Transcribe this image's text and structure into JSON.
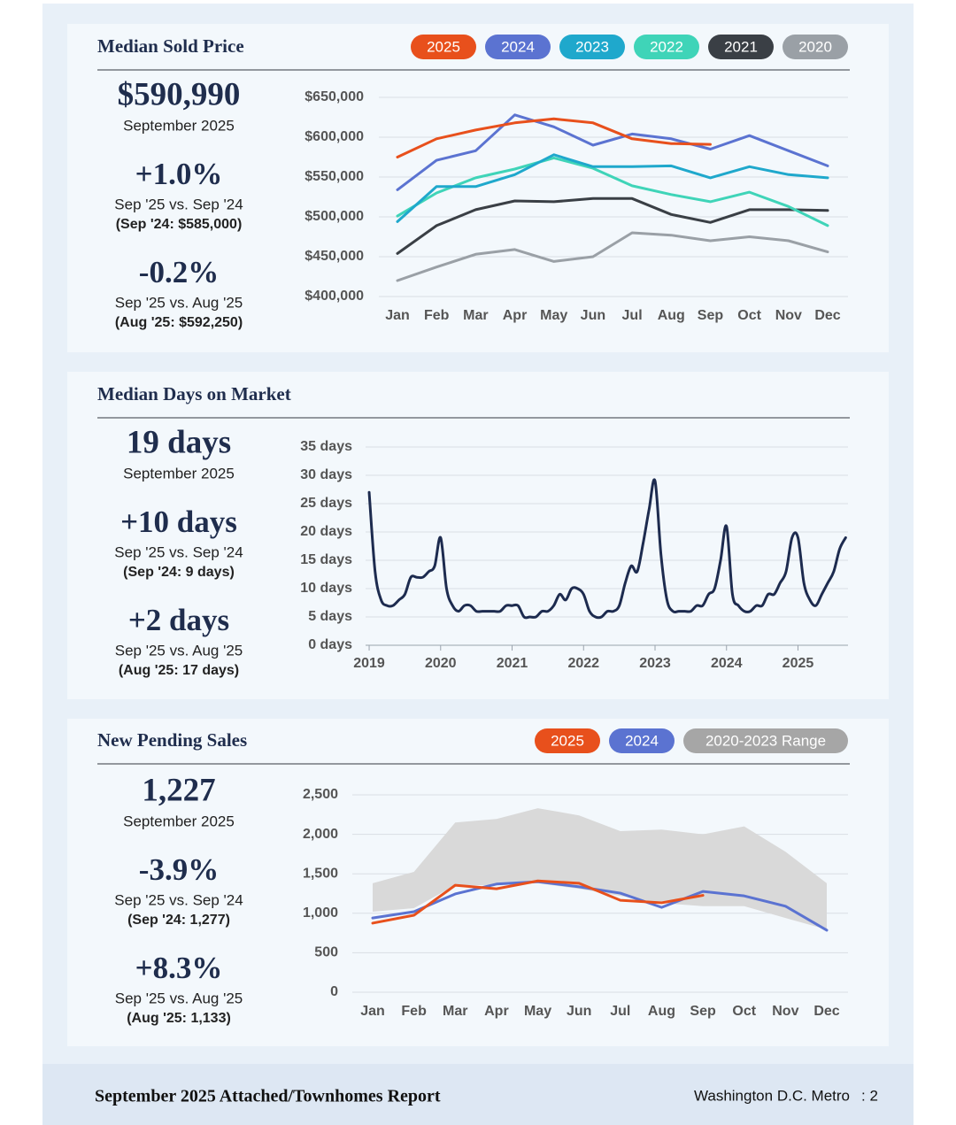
{
  "chart_data": [
    {
      "type": "line",
      "title": "Median Sold Price",
      "categories": [
        "Jan",
        "Feb",
        "Mar",
        "Apr",
        "May",
        "Jun",
        "Jul",
        "Aug",
        "Sep",
        "Oct",
        "Nov",
        "Dec"
      ],
      "series": [
        {
          "name": "2025",
          "color": "#e8501c",
          "values": [
            575000,
            598000,
            609000,
            618000,
            623000,
            618000,
            598000,
            592000,
            590990,
            null,
            null,
            null
          ]
        },
        {
          "name": "2024",
          "color": "#5b73d1",
          "values": [
            534000,
            571000,
            583000,
            628000,
            613000,
            590000,
            604000,
            598000,
            585000,
            602000,
            583000,
            564000
          ]
        },
        {
          "name": "2023",
          "color": "#1fa8cc",
          "values": [
            494000,
            538000,
            538000,
            553000,
            578000,
            563000,
            563000,
            564000,
            549000,
            563000,
            553000,
            549000
          ]
        },
        {
          "name": "2022",
          "color": "#3fd4b8",
          "values": [
            501000,
            530000,
            549000,
            560000,
            574000,
            561000,
            539000,
            528000,
            519000,
            531000,
            513000,
            489000
          ]
        },
        {
          "name": "2021",
          "color": "#3a3f45",
          "values": [
            454000,
            489000,
            509000,
            520000,
            519000,
            523000,
            523000,
            503000,
            493000,
            509000,
            509000,
            508000
          ]
        },
        {
          "name": "2020",
          "color": "#9aa0a6",
          "values": [
            420000,
            437000,
            453000,
            459000,
            444000,
            450000,
            480000,
            477000,
            470000,
            475000,
            470000,
            456000
          ]
        }
      ],
      "ylim": [
        400000,
        650000
      ],
      "yticks": [
        {
          "value": 400000,
          "label": "$400,000"
        },
        {
          "value": 450000,
          "label": "$450,000"
        },
        {
          "value": 500000,
          "label": "$500,000"
        },
        {
          "value": 550000,
          "label": "$550,000"
        },
        {
          "value": 600000,
          "label": "$600,000"
        },
        {
          "value": 650000,
          "label": "$650,000"
        }
      ],
      "grid": true,
      "legend": "top-right"
    },
    {
      "type": "line",
      "title": "Median Days on Market",
      "x": [
        2019,
        2019.083,
        2019.167,
        2019.25,
        2019.333,
        2019.417,
        2019.5,
        2019.583,
        2019.667,
        2019.75,
        2019.833,
        2019.917,
        2020,
        2020.083,
        2020.167,
        2020.25,
        2020.333,
        2020.417,
        2020.5,
        2020.583,
        2020.667,
        2020.75,
        2020.833,
        2020.917,
        2021,
        2021.083,
        2021.167,
        2021.25,
        2021.333,
        2021.417,
        2021.5,
        2021.583,
        2021.667,
        2021.75,
        2021.833,
        2021.917,
        2022,
        2022.083,
        2022.167,
        2022.25,
        2022.333,
        2022.417,
        2022.5,
        2022.583,
        2022.667,
        2022.75,
        2022.833,
        2022.917,
        2023,
        2023.083,
        2023.167,
        2023.25,
        2023.333,
        2023.417,
        2023.5,
        2023.583,
        2023.667,
        2023.75,
        2023.833,
        2023.917,
        2024,
        2024.083,
        2024.167,
        2024.25,
        2024.333,
        2024.417,
        2024.5,
        2024.583,
        2024.667,
        2024.75,
        2024.833,
        2024.917,
        2025,
        2025.083,
        2025.167,
        2025.25,
        2025.333,
        2025.417,
        2025.5,
        2025.583,
        2025.667
      ],
      "series": [
        {
          "color": "#1d2b4f",
          "values": [
            27,
            13,
            8,
            7,
            7,
            8,
            9,
            12,
            12,
            12,
            13,
            14,
            19,
            10,
            7,
            6,
            7,
            7,
            6,
            6,
            6,
            6,
            6,
            7,
            7,
            7,
            5,
            5,
            5,
            6,
            6,
            7,
            9,
            8,
            10,
            10,
            9,
            6,
            5,
            5,
            6,
            6,
            7,
            11,
            14,
            13,
            18,
            24,
            29,
            16,
            8,
            6,
            6,
            6,
            6,
            7,
            7,
            9,
            10,
            15,
            21,
            9,
            7,
            6,
            6,
            7,
            7,
            9,
            9,
            11,
            13,
            19,
            19,
            11,
            8,
            7,
            9,
            11,
            13,
            17,
            19
          ]
        }
      ],
      "xlim": [
        2018.95,
        2025.7
      ],
      "xticks": [
        2019,
        2020,
        2021,
        2022,
        2023,
        2024,
        2025
      ],
      "ylim": [
        0,
        35
      ],
      "yticks": [
        {
          "value": 0,
          "label": "0 days"
        },
        {
          "value": 5,
          "label": "5 days"
        },
        {
          "value": 10,
          "label": "10 days"
        },
        {
          "value": 15,
          "label": "15 days"
        },
        {
          "value": 20,
          "label": "20 days"
        },
        {
          "value": 25,
          "label": "25 days"
        },
        {
          "value": 30,
          "label": "30 days"
        },
        {
          "value": 35,
          "label": "35 days"
        }
      ],
      "grid": true,
      "smooth": true
    },
    {
      "type": "line",
      "title": "New Pending Sales",
      "categories": [
        "Jan",
        "Feb",
        "Mar",
        "Apr",
        "May",
        "Jun",
        "Jul",
        "Aug",
        "Sep",
        "Oct",
        "Nov",
        "Dec"
      ],
      "series": [
        {
          "name": "2025",
          "color": "#e8501c",
          "values": [
            875,
            975,
            1355,
            1310,
            1410,
            1380,
            1165,
            1133,
            1227,
            null,
            null,
            null
          ]
        },
        {
          "name": "2024",
          "color": "#5b73d1",
          "values": [
            940,
            1020,
            1245,
            1370,
            1400,
            1335,
            1255,
            1075,
            1277,
            1220,
            1090,
            785
          ]
        }
      ],
      "band": {
        "name": "2020-2023 Range",
        "color": "#d9d9d9",
        "legend_color": "#a6a6a6",
        "high": [
          1380,
          1525,
          2150,
          2195,
          2330,
          2240,
          2040,
          2060,
          2000,
          2100,
          1780,
          1380
        ],
        "low": [
          1020,
          1065,
          1355,
          1355,
          1380,
          1310,
          1220,
          1130,
          1090,
          1090,
          940,
          795
        ]
      },
      "ylim": [
        0,
        2500
      ],
      "yticks": [
        0,
        500,
        {
          "value": 1000,
          "label": "1,000"
        },
        {
          "value": 1500,
          "label": "1,500"
        },
        {
          "value": 2000,
          "label": "2,000"
        },
        {
          "value": 2500,
          "label": "2,500"
        }
      ],
      "grid": true,
      "legend": "top-right"
    }
  ],
  "panels": [
    {
      "headline": "$590,990",
      "period": "September 2025",
      "changes": [
        {
          "value": "+1.0%",
          "comparison": "Sep '25 vs. Sep '24",
          "reference": "(Sep '24: $585,000)"
        },
        {
          "value": "-0.2%",
          "comparison": "Sep '25 vs. Aug '25",
          "reference": "(Aug '25: $592,250)"
        }
      ]
    },
    {
      "headline": "19 days",
      "period": "September 2025",
      "changes": [
        {
          "value": "+10 days",
          "comparison": "Sep '25 vs. Sep '24",
          "reference": "(Sep '24: 9 days)"
        },
        {
          "value": "+2 days",
          "comparison": "Sep '25 vs. Aug '25",
          "reference": "(Aug '25: 17 days)"
        }
      ]
    },
    {
      "headline": "1,227",
      "period": "September 2025",
      "changes": [
        {
          "value": "-3.9%",
          "comparison": "Sep '25 vs. Sep '24",
          "reference": "(Sep '24: 1,277)"
        },
        {
          "value": "+8.3%",
          "comparison": "Sep '25 vs. Aug '25",
          "reference": "(Aug '25: 1,133)"
        }
      ]
    }
  ],
  "footer": {
    "report": "September 2025 Attached/Townhomes Report",
    "region": "Washington D.C. Metro",
    "page": ": 2"
  }
}
